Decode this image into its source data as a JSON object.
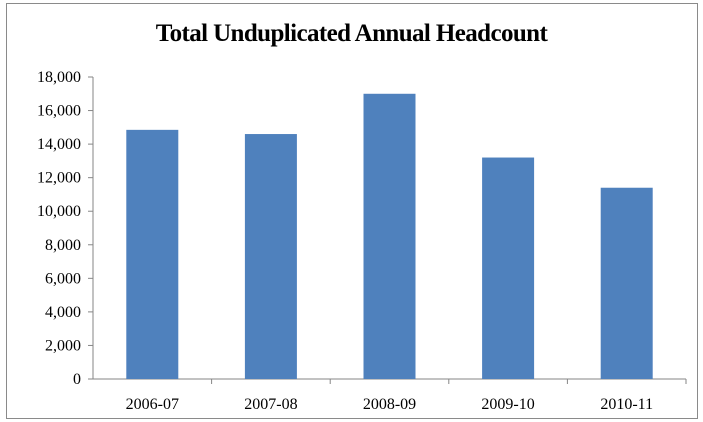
{
  "chart_data": {
    "type": "bar",
    "title": "Total Unduplicated Annual Headcount",
    "categories": [
      "2006-07",
      "2007-08",
      "2008-09",
      "2009-10",
      "2010-11"
    ],
    "values": [
      14850,
      14600,
      17000,
      13200,
      11400
    ],
    "ylim": [
      0,
      18000
    ],
    "yticks": [
      0,
      2000,
      4000,
      6000,
      8000,
      10000,
      12000,
      14000,
      16000,
      18000
    ],
    "ytick_labels": [
      "0",
      "2,000",
      "4,000",
      "6,000",
      "8,000",
      "10,000",
      "12,000",
      "14,000",
      "16,000",
      "18,000"
    ],
    "grid": false,
    "legend": "none",
    "bar_color": "#4f81bd"
  }
}
